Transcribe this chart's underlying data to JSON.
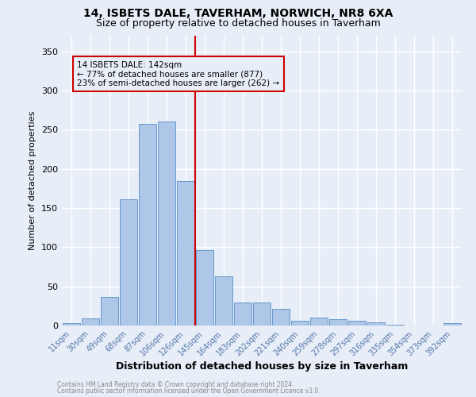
{
  "title": "14, ISBETS DALE, TAVERHAM, NORWICH, NR8 6XA",
  "subtitle": "Size of property relative to detached houses in Taverham",
  "xlabel": "Distribution of detached houses by size in Taverham",
  "ylabel": "Number of detached properties",
  "footnote1": "Contains HM Land Registry data © Crown copyright and database right 2024.",
  "footnote2": "Contains public sector information licensed under the Open Government Licence v3.0.",
  "bar_labels": [
    "11sqm",
    "30sqm",
    "49sqm",
    "68sqm",
    "87sqm",
    "106sqm",
    "126sqm",
    "145sqm",
    "164sqm",
    "183sqm",
    "202sqm",
    "221sqm",
    "240sqm",
    "259sqm",
    "278sqm",
    "297sqm",
    "316sqm",
    "335sqm",
    "354sqm",
    "373sqm",
    "392sqm"
  ],
  "bar_values": [
    3,
    9,
    36,
    161,
    257,
    261,
    184,
    96,
    63,
    29,
    29,
    21,
    6,
    10,
    8,
    6,
    4,
    1,
    0,
    0,
    3
  ],
  "bar_color": "#aec6e8",
  "bar_edgecolor": "#6699cc",
  "property_label": "14 ISBETS DALE: 142sqm",
  "annotation_line1": "← 77% of detached houses are smaller (877)",
  "annotation_line2": "23% of semi-detached houses are larger (262) →",
  "vline_color": "#cc0000",
  "ylim": [
    0,
    370
  ],
  "background_color": "#e8eef8",
  "grid_color": "#ffffff",
  "title_fontsize": 10,
  "subtitle_fontsize": 9,
  "ylabel_fontsize": 8,
  "xlabel_fontsize": 9,
  "tick_label_color": "#5577aa",
  "ytick_fontsize": 8,
  "xtick_fontsize": 7
}
